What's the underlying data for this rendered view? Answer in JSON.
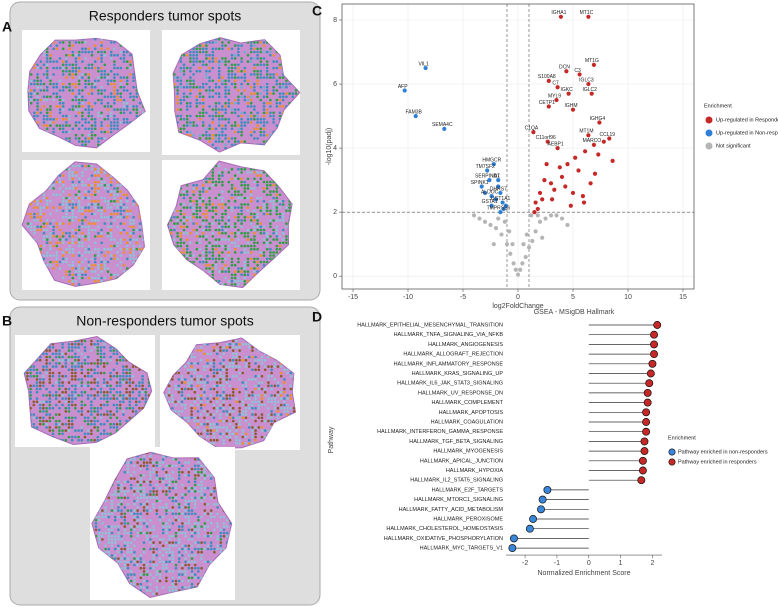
{
  "panels": [
    {
      "label": "A",
      "title": "Responders tumor spots"
    },
    {
      "label": "B",
      "title": "Non-responders tumor spots"
    },
    {
      "label": "C"
    },
    {
      "label": "D"
    }
  ],
  "chart_data": [
    {
      "type": "scatter",
      "xlabel": "log2FoldChange",
      "ylabel": "-log10(padj)",
      "xlim": [
        -16,
        16
      ],
      "ylim": [
        -0.4,
        8.5
      ],
      "xticks": [
        -15,
        -10,
        -5,
        0,
        5,
        10,
        15
      ],
      "yticks": [
        0,
        2,
        4,
        6,
        8
      ],
      "grid": true,
      "vlines": [
        -1,
        1
      ],
      "hline": [
        2
      ],
      "legend_title": "Enrichment",
      "legend": "right",
      "series": [
        {
          "name": "Up-regulated in Responder",
          "color": "#c62828",
          "x": [
            3.9,
            6.4,
            6.9,
            4.4,
            5.6,
            2.8,
            6.4,
            3.6,
            4.6,
            6.7,
            3.5,
            5.0,
            2.8,
            7.4,
            1.4,
            2.7,
            6.4,
            8.3,
            6.9,
            3.6,
            1.6,
            2.0,
            2.4,
            3.1,
            3.8,
            4.3,
            5.2,
            5.9,
            6.1,
            7.0,
            7.8,
            8.6,
            1.8,
            2.6,
            3.3,
            4.0,
            4.8,
            5.5,
            6.6,
            7.3,
            1.5,
            2.2,
            3.0,
            4.5,
            5.0,
            6.0
          ],
          "values": [
            8.1,
            8.1,
            6.6,
            6.4,
            6.3,
            6.1,
            6.0,
            5.9,
            5.7,
            5.7,
            5.5,
            5.2,
            5.3,
            4.8,
            4.5,
            4.2,
            4.4,
            4.3,
            4.1,
            4.0,
            2.3,
            2.6,
            3.0,
            2.4,
            3.4,
            2.8,
            3.7,
            2.5,
            3.9,
            3.2,
            4.2,
            3.6,
            2.1,
            3.5,
            2.7,
            3.1,
            2.2,
            3.3,
            2.9,
            3.8,
            2.0,
            2.4,
            2.9,
            3.5,
            2.6,
            2.3
          ],
          "labels": [
            "IGHA1",
            "MT1C",
            "MT1G",
            "DCN",
            "C3",
            "S100A8",
            "IGLC3",
            "C7",
            "IGKC",
            "IGLC2",
            "MYL9",
            "IGHM",
            "CETP1",
            "IGHG4",
            "C1QA",
            "C11orf96",
            "MT1M",
            "CCL19",
            "MARCO",
            "AEBP1",
            null,
            null,
            null,
            null,
            null,
            null,
            null,
            null,
            null,
            null,
            null,
            null,
            null,
            null,
            null,
            null,
            null,
            null,
            null,
            null,
            null,
            null,
            null,
            null,
            null,
            null
          ]
        },
        {
          "name": "Up-regulated in Non-responder",
          "color": "#2e7fd6",
          "x": [
            -8.4,
            -10.3,
            -9.3,
            -6.7,
            -2.2,
            -2.8,
            -2.6,
            -1.8,
            -3.3,
            -1.6,
            -2.4,
            -2.4,
            -1.4,
            -1.6,
            -1.3,
            -2.0,
            -1.1,
            -3.0,
            -1.8
          ],
          "values": [
            6.5,
            5.8,
            5.0,
            4.6,
            3.5,
            3.3,
            3.0,
            3.0,
            2.8,
            2.6,
            2.5,
            2.2,
            2.3,
            2.0,
            2.1,
            2.4,
            2.2,
            2.6,
            2.8
          ],
          "labels": [
            "VIL1",
            "AFP",
            "FAM3B",
            "SEMA4C",
            "HMGCR",
            "TM7SF2",
            "SERPINA7",
            "ID1",
            "SPINK1",
            "DHRS7",
            "ALDOC",
            "GSTA1",
            "UGT1A1",
            "TMPRSS6",
            null,
            null,
            null,
            null,
            null
          ]
        },
        {
          "name": "Not significant",
          "color": "#b5b5b5",
          "x": [
            -4.0,
            -3.5,
            -3.0,
            -2.5,
            -2.0,
            -1.5,
            -1.0,
            -0.7,
            -0.4,
            -0.2,
            0,
            0.2,
            0.4,
            0.7,
            1.0,
            1.3,
            1.6,
            2.0,
            2.5,
            3.0,
            3.5,
            4.0,
            -1.2,
            -0.8,
            0.8,
            1.2,
            0.5,
            -0.5,
            2.2,
            -2.2,
            1.8,
            -1.8,
            4.5
          ],
          "values": [
            1.9,
            1.8,
            1.7,
            1.6,
            1.5,
            1.3,
            1.0,
            0.7,
            0.4,
            0.2,
            0.05,
            0.2,
            0.4,
            0.6,
            0.9,
            1.1,
            1.4,
            1.7,
            1.8,
            1.9,
            1.9,
            1.8,
            1.7,
            1.4,
            1.3,
            1.9,
            1.0,
            1.0,
            1.2,
            1.0,
            1.9,
            1.8,
            1.6
          ]
        }
      ]
    },
    {
      "type": "lollipop",
      "title": "GSEA - MSigDB Hallmark",
      "xlabel": "Normalized Enrichment Score",
      "ylabel": "Pathway",
      "xlim": [
        -2.6,
        2.3
      ],
      "xticks": [
        -2,
        -1,
        0,
        1,
        2
      ],
      "legend_title": "Enrichment",
      "legend": "right",
      "groups_legend": [
        {
          "name": "Pathway enriched in non-responders",
          "color": "#3a86d9"
        },
        {
          "name": "Pathway enriched in responders",
          "color": "#c62828"
        }
      ],
      "categories": [
        "HALLMARK_EPITHELIAL_MESENCHYMAL_TRANSITION",
        "HALLMARK_TNFA_SIGNALING_VIA_NFKB",
        "HALLMARK_ANGIOGENESIS",
        "HALLMARK_ALLOGRAFT_REJECTION",
        "HALLMARK_INFLAMMATORY_RESPONSE",
        "HALLMARK_KRAS_SIGNALING_UP",
        "HALLMARK_IL6_JAK_STAT3_SIGNALING",
        "HALLMARK_UV_RESPONSE_DN",
        "HALLMARK_COMPLEMENT",
        "HALLMARK_APOPTOSIS",
        "HALLMARK_COAGULATION",
        "HALLMARK_INTERFERON_GAMMA_RESPONSE",
        "HALLMARK_TGF_BETA_SIGNALING",
        "HALLMARK_MYOGENESIS",
        "HALLMARK_APICAL_JUNCTION",
        "HALLMARK_HYPOXIA",
        "HALLMARK_IL2_STAT5_SIGNALING",
        "HALLMARK_E2F_TARGETS",
        "HALLMARK_MTORC1_SIGNALING",
        "HALLMARK_FATTY_ACID_METABOLISM",
        "HALLMARK_PEROXISOME",
        "HALLMARK_CHOLESTEROL_HOMEOSTASIS",
        "HALLMARK_OXIDATIVE_PHOSPHORYLATION",
        "HALLMARK_MYC_TARGETS_V1"
      ],
      "values": [
        2.15,
        2.05,
        2.05,
        2.05,
        2.0,
        1.95,
        1.9,
        1.85,
        1.85,
        1.8,
        1.8,
        1.8,
        1.75,
        1.75,
        1.7,
        1.7,
        1.65,
        -1.3,
        -1.45,
        -1.5,
        -1.75,
        -1.85,
        -2.35,
        -2.4
      ],
      "groups": [
        1,
        1,
        1,
        1,
        1,
        1,
        1,
        1,
        1,
        1,
        1,
        1,
        1,
        1,
        1,
        1,
        1,
        0,
        0,
        0,
        0,
        0,
        0,
        0
      ]
    }
  ]
}
